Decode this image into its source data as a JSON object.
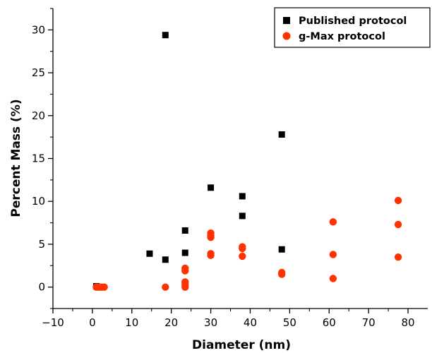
{
  "chart_data": {
    "type": "scatter",
    "xlabel": "Diameter (nm)",
    "ylabel": "Percent Mass (%)",
    "xlim": [
      -10,
      85
    ],
    "ylim": [
      -2.5,
      32.5
    ],
    "x_ticks": [
      -10,
      0,
      10,
      20,
      30,
      40,
      50,
      60,
      70,
      80
    ],
    "y_ticks": [
      0,
      5,
      10,
      15,
      20,
      25,
      30
    ],
    "grid": false,
    "legend_position": "top-right",
    "series": [
      {
        "name": "Published protocol",
        "marker": "square",
        "color": "#000000",
        "points": [
          [
            1,
            0.1
          ],
          [
            14.5,
            3.9
          ],
          [
            18.5,
            29.4
          ],
          [
            18.5,
            3.2
          ],
          [
            23.5,
            6.6
          ],
          [
            23.5,
            4.0
          ],
          [
            30,
            11.6
          ],
          [
            38,
            10.6
          ],
          [
            38,
            8.3
          ],
          [
            48,
            17.8
          ],
          [
            48,
            4.4
          ]
        ]
      },
      {
        "name": "g-Max protocol",
        "marker": "circle",
        "color": "#ff3300",
        "points": [
          [
            1,
            0.0
          ],
          [
            1.5,
            0.0
          ],
          [
            2,
            0.0
          ],
          [
            2.5,
            0.0
          ],
          [
            3,
            0.0
          ],
          [
            18.5,
            0.0
          ],
          [
            23.5,
            2.2
          ],
          [
            23.5,
            1.9
          ],
          [
            23.5,
            0.6
          ],
          [
            23.5,
            0.3
          ],
          [
            23.5,
            0.0
          ],
          [
            30,
            6.3
          ],
          [
            30,
            6.0
          ],
          [
            30,
            5.8
          ],
          [
            30,
            3.9
          ],
          [
            30,
            3.7
          ],
          [
            38,
            4.7
          ],
          [
            38,
            4.5
          ],
          [
            38,
            3.6
          ],
          [
            48,
            1.7
          ],
          [
            48,
            1.5
          ],
          [
            61,
            7.6
          ],
          [
            61,
            3.8
          ],
          [
            61,
            1.0
          ],
          [
            77.5,
            10.1
          ],
          [
            77.5,
            7.3
          ],
          [
            77.5,
            3.5
          ]
        ]
      }
    ]
  }
}
